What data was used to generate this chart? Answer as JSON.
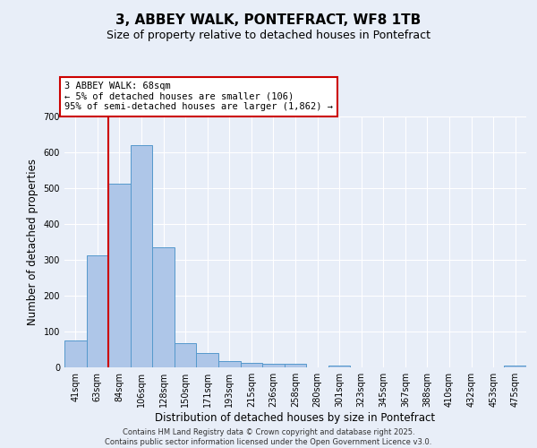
{
  "title": "3, ABBEY WALK, PONTEFRACT, WF8 1TB",
  "subtitle": "Size of property relative to detached houses in Pontefract",
  "xlabel": "Distribution of detached houses by size in Pontefract",
  "ylabel": "Number of detached properties",
  "bar_color": "#aec6e8",
  "bar_edge_color": "#5599cc",
  "background_color": "#e8eef8",
  "grid_color": "#ffffff",
  "categories": [
    "41sqm",
    "63sqm",
    "84sqm",
    "106sqm",
    "128sqm",
    "150sqm",
    "171sqm",
    "193sqm",
    "215sqm",
    "236sqm",
    "258sqm",
    "280sqm",
    "301sqm",
    "323sqm",
    "345sqm",
    "367sqm",
    "388sqm",
    "410sqm",
    "432sqm",
    "453sqm",
    "475sqm"
  ],
  "values": [
    75,
    312,
    512,
    620,
    336,
    68,
    40,
    17,
    13,
    10,
    10,
    0,
    6,
    0,
    0,
    0,
    0,
    0,
    0,
    0,
    5
  ],
  "ylim": [
    0,
    700
  ],
  "yticks": [
    0,
    100,
    200,
    300,
    400,
    500,
    600,
    700
  ],
  "vline_color": "#cc0000",
  "annotation_text": "3 ABBEY WALK: 68sqm\n← 5% of detached houses are smaller (106)\n95% of semi-detached houses are larger (1,862) →",
  "annotation_box_color": "#ffffff",
  "annotation_box_edge_color": "#cc0000",
  "footer_line1": "Contains HM Land Registry data © Crown copyright and database right 2025.",
  "footer_line2": "Contains public sector information licensed under the Open Government Licence v3.0.",
  "title_fontsize": 11,
  "subtitle_fontsize": 9,
  "label_fontsize": 8.5,
  "tick_fontsize": 7,
  "footer_fontsize": 6,
  "annot_fontsize": 7.5
}
